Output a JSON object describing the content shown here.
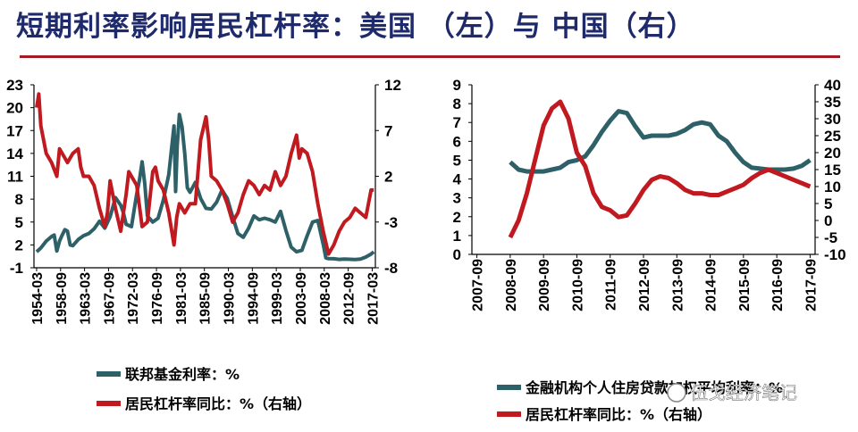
{
  "page": {
    "title": "短期利率影响居民杠杆率：美国 （左）与 中国（右）"
  },
  "watermark": {
    "text": "伍戈经济笔记"
  },
  "colors": {
    "teal": "#2e6068",
    "red": "#c0191f",
    "title": "#1f2a6b",
    "rule": "#a31a22"
  },
  "chart_data": [
    {
      "type": "line",
      "ylim_left": [
        -1,
        23
      ],
      "ylim_right": [
        -8,
        12
      ],
      "yticks_left": [
        "23",
        "20",
        "17",
        "14",
        "11",
        "8",
        "5",
        "2",
        "-1"
      ],
      "yticks_right": [
        "12",
        "7",
        "2",
        "-3",
        "-8"
      ],
      "xticks": [
        "1954-03",
        "1958-09",
        "1963-03",
        "1967-09",
        "1972-03",
        "1976-09",
        "1981-03",
        "1985-09",
        "1990-03",
        "1994-09",
        "1999-03",
        "2003-09",
        "2008-03",
        "2012-09",
        "2017-03"
      ],
      "series": [
        {
          "name": "联邦基金利率：%",
          "axis": "left",
          "x": [
            1954.2,
            1955,
            1956,
            1957,
            1957.5,
            1958,
            1958.5,
            1959,
            1959.5,
            1960,
            1960.5,
            1961,
            1962,
            1963,
            1964,
            1965,
            1966,
            1967,
            1968,
            1969,
            1970,
            1970.5,
            1971,
            1972,
            1973,
            1973.5,
            1974,
            1974.5,
            1975,
            1976,
            1977,
            1978,
            1979,
            1980,
            1980.3,
            1980.6,
            1981,
            1981.5,
            1982,
            1982.5,
            1983,
            1984,
            1985,
            1986,
            1987,
            1988,
            1989,
            1990,
            1991,
            1992,
            1993,
            1994,
            1995,
            1996,
            1997,
            1998,
            1999,
            2000,
            2001,
            2002,
            2003,
            2004,
            2005,
            2006,
            2007,
            2008,
            2008.5,
            2009,
            2010,
            2011,
            2012,
            2013,
            2014,
            2015,
            2016,
            2017,
            2017.5
          ],
          "y": [
            1.1,
            1.6,
            2.5,
            3.1,
            3.3,
            1.2,
            2.5,
            3.3,
            4,
            3.8,
            2,
            1.9,
            2.7,
            3.2,
            3.5,
            4.1,
            5.1,
            4.2,
            5.7,
            8.2,
            7.2,
            6.2,
            4.7,
            4.4,
            8.7,
            10.5,
            12.9,
            10,
            5.8,
            5,
            5.5,
            7.9,
            11.2,
            17.6,
            9,
            15,
            19.1,
            17.5,
            14,
            9.5,
            8.9,
            10.2,
            8.1,
            6.8,
            6.7,
            7.6,
            9.2,
            8.1,
            5.7,
            3.5,
            3,
            4.2,
            5.8,
            5.3,
            5.5,
            5.3,
            5,
            6.4,
            3.9,
            1.7,
            1.1,
            1.3,
            3.2,
            5,
            5.2,
            2.1,
            0.3,
            0.2,
            0.18,
            0.1,
            0.14,
            0.11,
            0.09,
            0.13,
            0.4,
            0.8,
            1.1
          ]
        },
        {
          "name": "居民杠杆率同比：%（右轴）",
          "axis": "right",
          "x": [
            1954.2,
            1954.6,
            1955,
            1955.5,
            1956,
            1957,
            1958,
            1958.5,
            1959,
            1960,
            1961,
            1962,
            1962.5,
            1963,
            1964,
            1965,
            1966,
            1967,
            1967.5,
            1968,
            1969,
            1970,
            1971,
            1971.5,
            1972,
            1973,
            1974,
            1975,
            1976,
            1976.5,
            1977,
            1978,
            1979,
            1980,
            1980.5,
            1981,
            1982,
            1983,
            1984,
            1985,
            1986,
            1986.5,
            1987,
            1988,
            1989,
            1990,
            1991,
            1992,
            1993,
            1994,
            1995,
            1996,
            1997,
            1998,
            1999,
            2000,
            2001,
            2002,
            2003,
            2003.5,
            2004,
            2005,
            2006,
            2007,
            2008,
            2009,
            2010,
            2011,
            2012,
            2013,
            2014,
            2015,
            2016,
            2017,
            2017.5
          ],
          "y": [
            9.5,
            11,
            7.5,
            6,
            4.5,
            3.5,
            2,
            5,
            4.5,
            3.5,
            4.5,
            5,
            3,
            2,
            2,
            1,
            -1.5,
            -3.5,
            -2,
            1.5,
            -1.5,
            -4,
            0,
            2.5,
            2,
            1,
            -3.5,
            -3,
            2.5,
            3,
            1.5,
            0.5,
            -2,
            -5.5,
            -2.5,
            -1,
            -2,
            -1,
            -1,
            6,
            8.5,
            6,
            2,
            1.5,
            0.5,
            -1,
            -3,
            -2,
            0,
            1.5,
            1,
            0,
            1,
            0.5,
            2.5,
            1,
            2,
            4.5,
            6.5,
            4,
            5,
            4.5,
            2.5,
            -1,
            -4,
            -6.5,
            -5.5,
            -4,
            -3,
            -2.5,
            -1.5,
            -2,
            -2.5,
            0.5,
            0.5
          ]
        }
      ]
    },
    {
      "type": "line",
      "ylim_left": [
        0,
        9
      ],
      "ylim_right": [
        -10,
        40
      ],
      "yticks_left": [
        "9",
        "8",
        "7",
        "6",
        "5",
        "4",
        "3",
        "2",
        "1",
        "0"
      ],
      "yticks_right": [
        "40",
        "35",
        "30",
        "25",
        "20",
        "15",
        "10",
        "5",
        "0",
        "-5",
        "-10"
      ],
      "xticks": [
        "2007-09",
        "2008-09",
        "2009-09",
        "2010-09",
        "2011-09",
        "2012-09",
        "2013-09",
        "2014-09",
        "2015-09",
        "2016-09",
        "2017-09"
      ],
      "series": [
        {
          "name": "金融机构个人住房贷款加权平均利率：%",
          "axis": "left",
          "x": [
            2008.75,
            2009,
            2009.25,
            2009.5,
            2009.75,
            2010,
            2010.25,
            2010.5,
            2010.75,
            2011,
            2011.25,
            2011.5,
            2011.75,
            2012,
            2012.25,
            2012.5,
            2012.75,
            2013,
            2013.25,
            2013.5,
            2013.75,
            2014,
            2014.25,
            2014.5,
            2014.75,
            2015,
            2015.25,
            2015.5,
            2015.75,
            2016,
            2016.25,
            2016.5,
            2016.75,
            2017,
            2017.25,
            2017.5,
            2017.75
          ],
          "y": [
            4.9,
            4.5,
            4.4,
            4.4,
            4.4,
            4.5,
            4.6,
            4.9,
            5.0,
            5.2,
            5.8,
            6.5,
            7.1,
            7.6,
            7.5,
            6.8,
            6.2,
            6.3,
            6.3,
            6.3,
            6.4,
            6.6,
            6.9,
            7.0,
            6.9,
            6.3,
            6.0,
            5.4,
            4.9,
            4.6,
            4.55,
            4.5,
            4.5,
            4.5,
            4.55,
            4.7,
            5.0
          ]
        },
        {
          "name": "居民杠杆率同比：%（右轴）",
          "axis": "right",
          "x": [
            2008.75,
            2009,
            2009.25,
            2009.5,
            2009.75,
            2010,
            2010.25,
            2010.5,
            2010.75,
            2011,
            2011.25,
            2011.5,
            2011.75,
            2012,
            2012.25,
            2012.5,
            2012.75,
            2013,
            2013.25,
            2013.5,
            2013.75,
            2014,
            2014.25,
            2014.5,
            2014.75,
            2015,
            2015.25,
            2015.5,
            2015.75,
            2016,
            2016.25,
            2016.5,
            2016.75,
            2017,
            2017.25,
            2017.5,
            2017.75
          ],
          "y": [
            -5,
            0,
            8,
            18,
            28,
            33,
            35,
            30,
            20,
            16,
            8,
            4,
            3,
            1,
            1.5,
            5,
            9,
            12,
            13,
            12.5,
            11,
            9,
            8,
            8,
            7.5,
            7.5,
            8.5,
            9.5,
            10.5,
            12.5,
            14,
            15,
            14,
            13,
            12,
            11,
            10
          ]
        }
      ]
    }
  ]
}
